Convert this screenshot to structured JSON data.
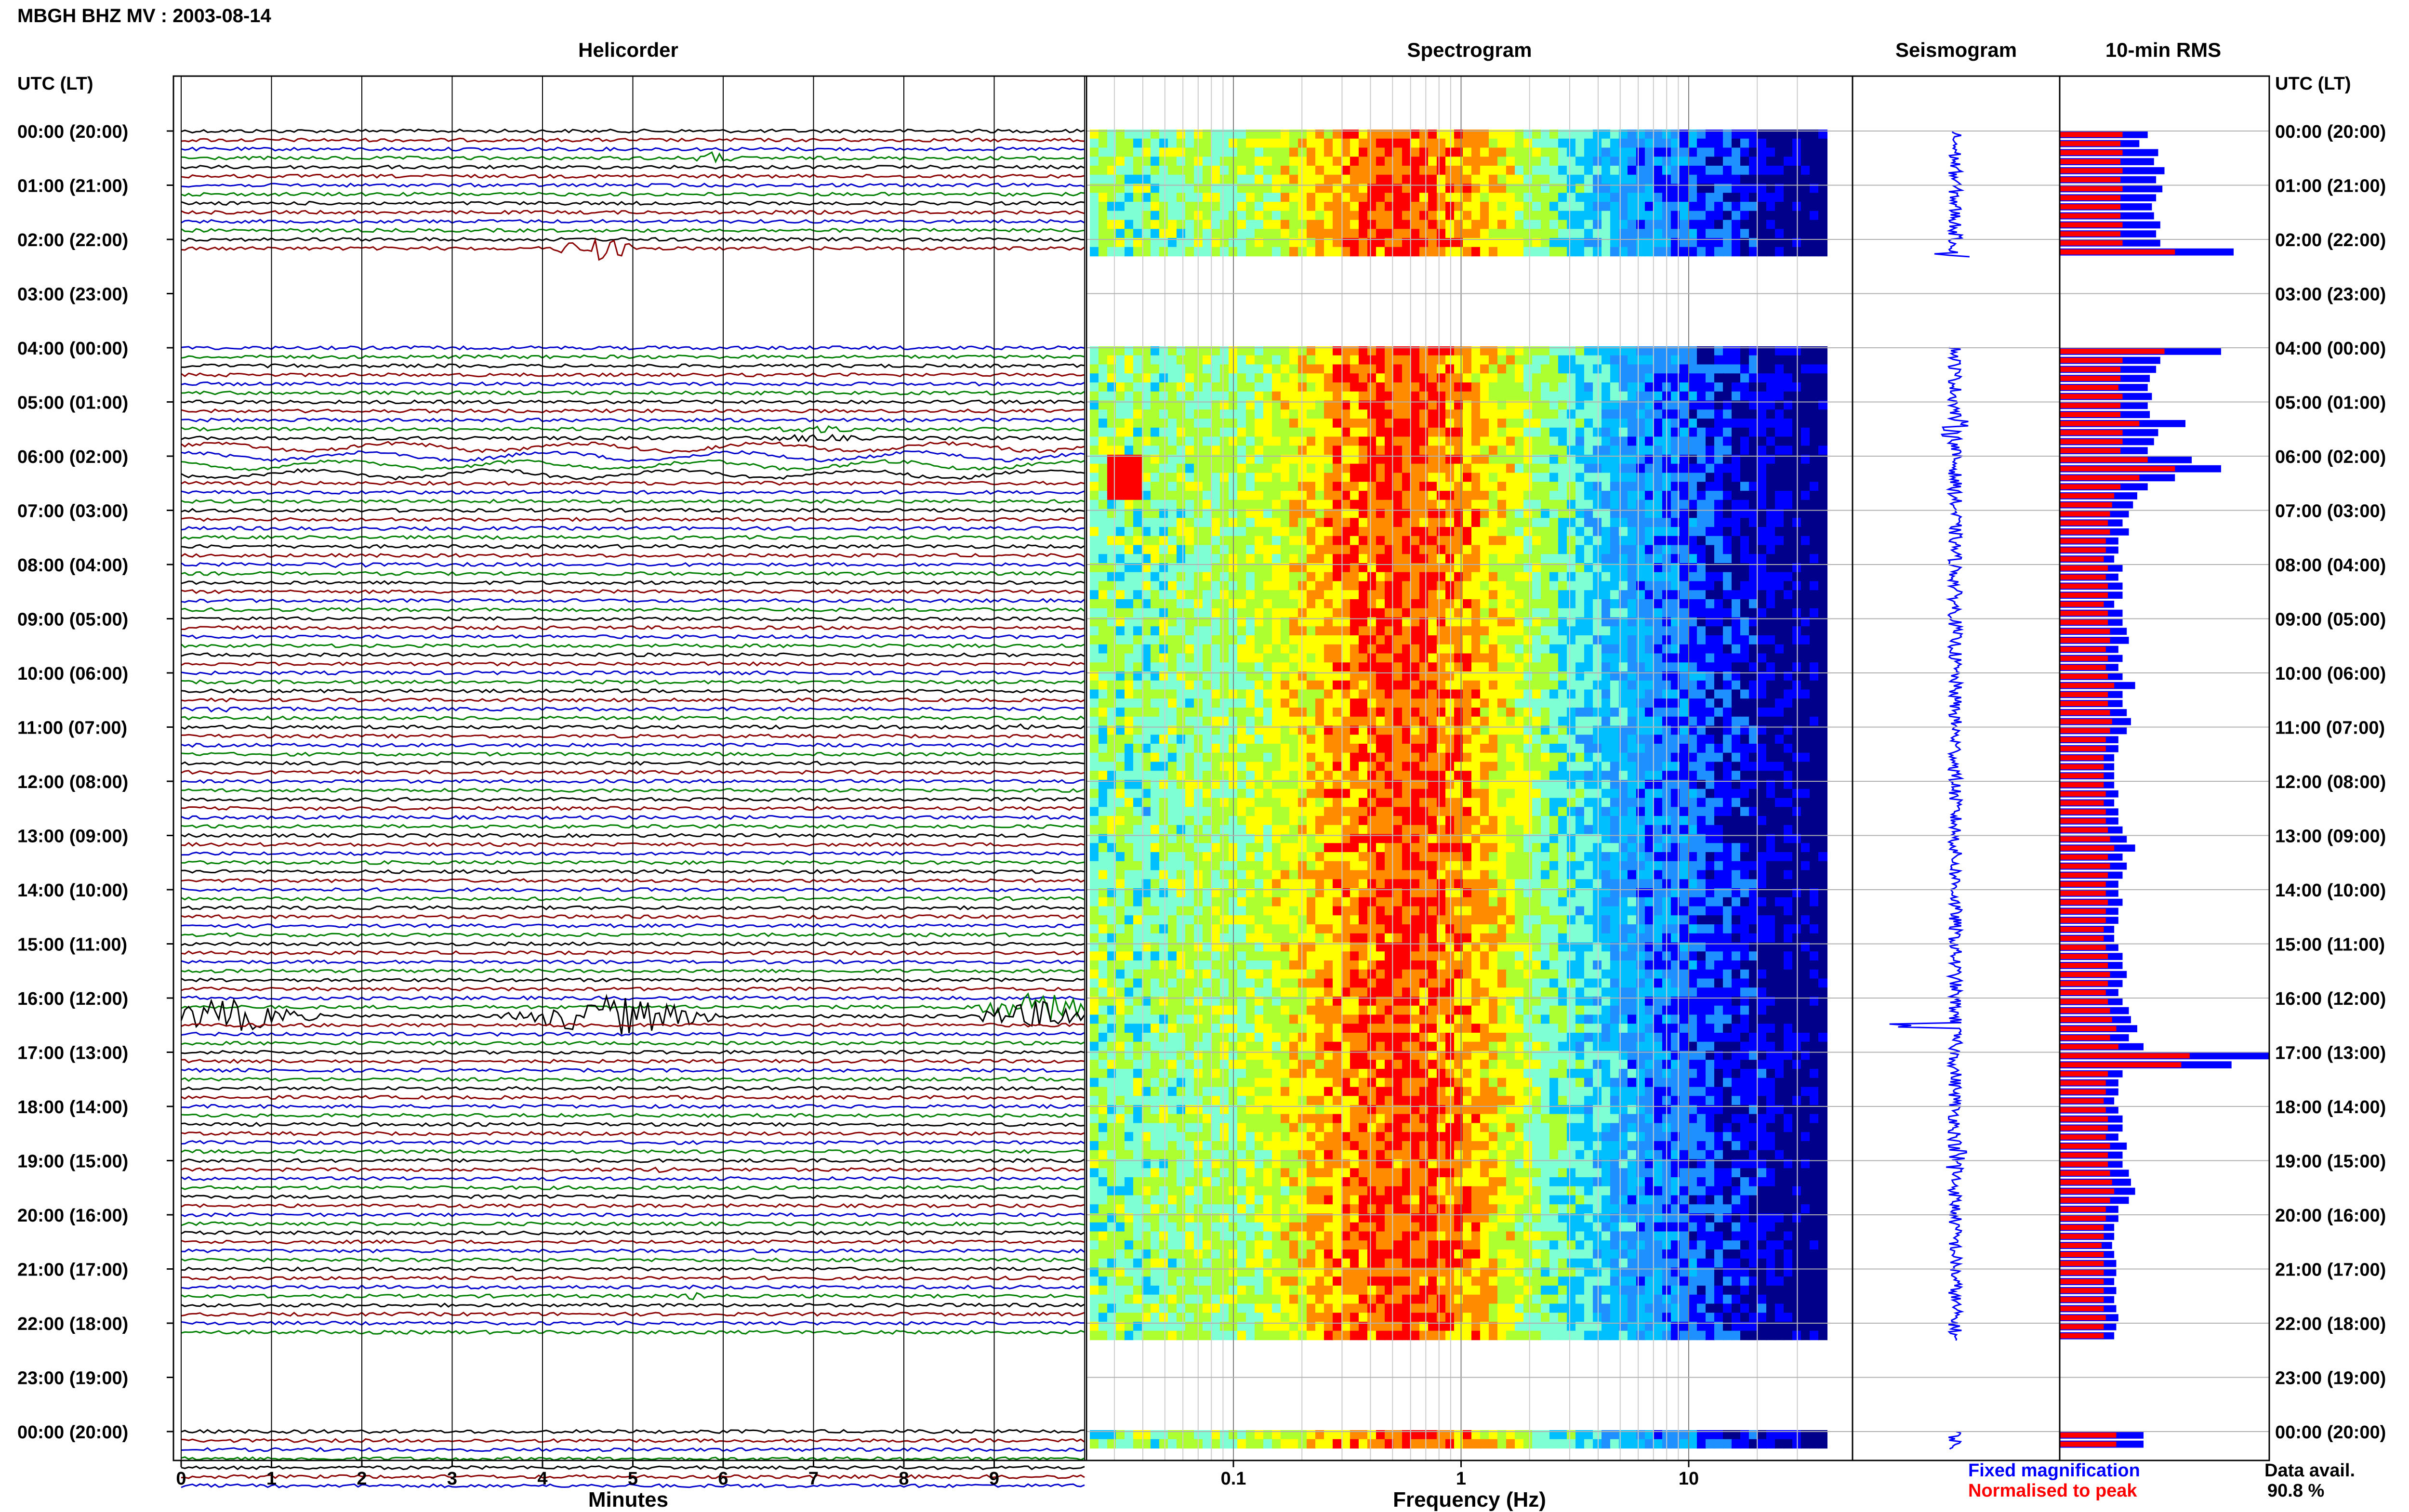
{
  "header": {
    "station_title": "MBGH BHZ MV : 2003-08-14",
    "panels": [
      "Helicorder",
      "Spectrogram",
      "Seismogram",
      "10-min RMS"
    ],
    "left_axis_title": "UTC (LT)",
    "right_axis_title": "UTC (LT)"
  },
  "time_labels": [
    "00:00 (20:00)",
    "01:00 (21:00)",
    "02:00 (22:00)",
    "03:00 (23:00)",
    "04:00 (00:00)",
    "05:00 (01:00)",
    "06:00 (02:00)",
    "07:00 (03:00)",
    "08:00 (04:00)",
    "09:00 (05:00)",
    "10:00 (06:00)",
    "11:00 (07:00)",
    "12:00 (08:00)",
    "13:00 (09:00)",
    "14:00 (10:00)",
    "15:00 (11:00)",
    "16:00 (12:00)",
    "17:00 (13:00)",
    "18:00 (14:00)",
    "19:00 (15:00)",
    "20:00 (16:00)",
    "21:00 (17:00)",
    "22:00 (18:00)",
    "23:00 (19:00)",
    "00:00 (20:00)"
  ],
  "helicorder": {
    "xlabel": "Minutes",
    "ticks": [
      "0",
      "1",
      "2",
      "3",
      "4",
      "5",
      "6",
      "7",
      "8",
      "9"
    ],
    "trace_colors": [
      "#000000",
      "#8b0000",
      "#0000cc",
      "#008000"
    ]
  },
  "spectrogram": {
    "xlabel": "Frequency (Hz)",
    "ticks": [
      "0.1",
      "1",
      "10"
    ],
    "colormap": [
      "#00008b",
      "#0000ff",
      "#1e90ff",
      "#00bfff",
      "#7fffd4",
      "#adff2f",
      "#ffff00",
      "#ff8c00",
      "#ff0000"
    ]
  },
  "legend": {
    "fixed": "Fixed magnification",
    "normalised": "Normalised to peak",
    "fixed_color": "#0000ff",
    "normalised_color": "#ff0000",
    "availability_label": "Data avail.",
    "availability_value": "90.8 %"
  },
  "chart_data": {
    "type": "bar",
    "title": "10-min RMS",
    "x": "hour UTC",
    "data_availability_percent": 90.8,
    "gaps_hours": [
      [
        2.33,
        3.99
      ],
      [
        22.33,
        23.99
      ]
    ],
    "series": [
      {
        "name": "Fixed magnification",
        "hours": [
          0,
          0.167,
          0.333,
          0.5,
          0.667,
          0.833,
          1,
          1.167,
          1.333,
          1.5,
          1.667,
          1.833,
          2,
          2.167,
          4,
          4.167,
          4.333,
          4.5,
          4.667,
          4.833,
          5,
          5.167,
          5.333,
          5.5,
          5.667,
          5.833,
          6,
          6.167,
          6.333,
          6.5,
          6.667,
          6.833,
          7,
          7.167,
          7.333,
          7.5,
          7.667,
          7.833,
          8,
          8.167,
          8.333,
          8.5,
          8.667,
          8.833,
          9,
          9.167,
          9.333,
          9.5,
          9.667,
          9.833,
          10,
          10.167,
          10.333,
          10.5,
          10.667,
          10.833,
          11,
          11.167,
          11.333,
          11.5,
          11.667,
          11.833,
          12,
          12.167,
          12.333,
          12.5,
          12.667,
          12.833,
          13,
          13.167,
          13.333,
          13.5,
          13.667,
          13.833,
          14,
          14.167,
          14.333,
          14.5,
          14.667,
          14.833,
          15,
          15.167,
          15.333,
          15.5,
          15.667,
          15.833,
          16,
          16.167,
          16.333,
          16.5,
          16.667,
          16.833,
          17,
          17.167,
          17.333,
          17.5,
          17.667,
          17.833,
          18,
          18.167,
          18.333,
          18.5,
          18.667,
          18.833,
          19,
          19.167,
          19.333,
          19.5,
          19.667,
          19.833,
          20,
          20.167,
          20.333,
          20.5,
          20.667,
          20.833,
          21,
          21.167,
          21.333,
          21.5,
          21.667,
          21.833,
          22,
          22.167,
          24,
          24.167
        ],
        "values": [
          0.42,
          0.38,
          0.47,
          0.45,
          0.5,
          0.46,
          0.49,
          0.46,
          0.44,
          0.45,
          0.48,
          0.46,
          0.48,
          0.83,
          0.77,
          0.48,
          0.46,
          0.43,
          0.42,
          0.44,
          0.42,
          0.43,
          0.6,
          0.47,
          0.45,
          0.42,
          0.63,
          0.77,
          0.55,
          0.42,
          0.37,
          0.35,
          0.33,
          0.3,
          0.33,
          0.28,
          0.28,
          0.26,
          0.3,
          0.28,
          0.3,
          0.3,
          0.26,
          0.3,
          0.3,
          0.32,
          0.33,
          0.28,
          0.3,
          0.28,
          0.3,
          0.36,
          0.3,
          0.3,
          0.32,
          0.34,
          0.32,
          0.28,
          0.28,
          0.26,
          0.26,
          0.26,
          0.26,
          0.28,
          0.26,
          0.28,
          0.28,
          0.3,
          0.32,
          0.36,
          0.3,
          0.32,
          0.3,
          0.28,
          0.28,
          0.3,
          0.28,
          0.28,
          0.26,
          0.26,
          0.28,
          0.3,
          0.3,
          0.32,
          0.3,
          0.28,
          0.3,
          0.33,
          0.34,
          0.37,
          0.33,
          0.4,
          1.0,
          0.82,
          0.3,
          0.28,
          0.28,
          0.26,
          0.28,
          0.3,
          0.3,
          0.28,
          0.32,
          0.3,
          0.3,
          0.33,
          0.34,
          0.36,
          0.33,
          0.28,
          0.28,
          0.26,
          0.26,
          0.25,
          0.26,
          0.27,
          0.27,
          0.26,
          0.27,
          0.26,
          0.27,
          0.28,
          0.27,
          0.26,
          0.4,
          0.4
        ]
      },
      {
        "name": "Normalised to peak",
        "values": [
          0.3,
          0.29,
          0.3,
          0.29,
          0.3,
          0.29,
          0.3,
          0.29,
          0.29,
          0.29,
          0.3,
          0.29,
          0.3,
          0.55,
          0.5,
          0.3,
          0.29,
          0.29,
          0.28,
          0.3,
          0.29,
          0.29,
          0.38,
          0.3,
          0.3,
          0.29,
          0.42,
          0.55,
          0.38,
          0.29,
          0.26,
          0.25,
          0.24,
          0.23,
          0.24,
          0.22,
          0.22,
          0.21,
          0.23,
          0.22,
          0.23,
          0.23,
          0.21,
          0.23,
          0.23,
          0.24,
          0.24,
          0.22,
          0.23,
          0.22,
          0.23,
          0.26,
          0.23,
          0.23,
          0.24,
          0.25,
          0.24,
          0.22,
          0.22,
          0.21,
          0.21,
          0.21,
          0.21,
          0.22,
          0.21,
          0.22,
          0.22,
          0.23,
          0.24,
          0.26,
          0.23,
          0.24,
          0.23,
          0.22,
          0.22,
          0.23,
          0.22,
          0.22,
          0.21,
          0.21,
          0.22,
          0.23,
          0.23,
          0.24,
          0.23,
          0.22,
          0.23,
          0.24,
          0.25,
          0.27,
          0.24,
          0.28,
          0.62,
          0.58,
          0.23,
          0.22,
          0.22,
          0.21,
          0.22,
          0.23,
          0.23,
          0.22,
          0.24,
          0.23,
          0.23,
          0.24,
          0.25,
          0.26,
          0.24,
          0.22,
          0.22,
          0.21,
          0.21,
          0.2,
          0.21,
          0.21,
          0.21,
          0.21,
          0.21,
          0.21,
          0.21,
          0.22,
          0.21,
          0.21,
          0.27,
          0.27
        ]
      }
    ]
  }
}
